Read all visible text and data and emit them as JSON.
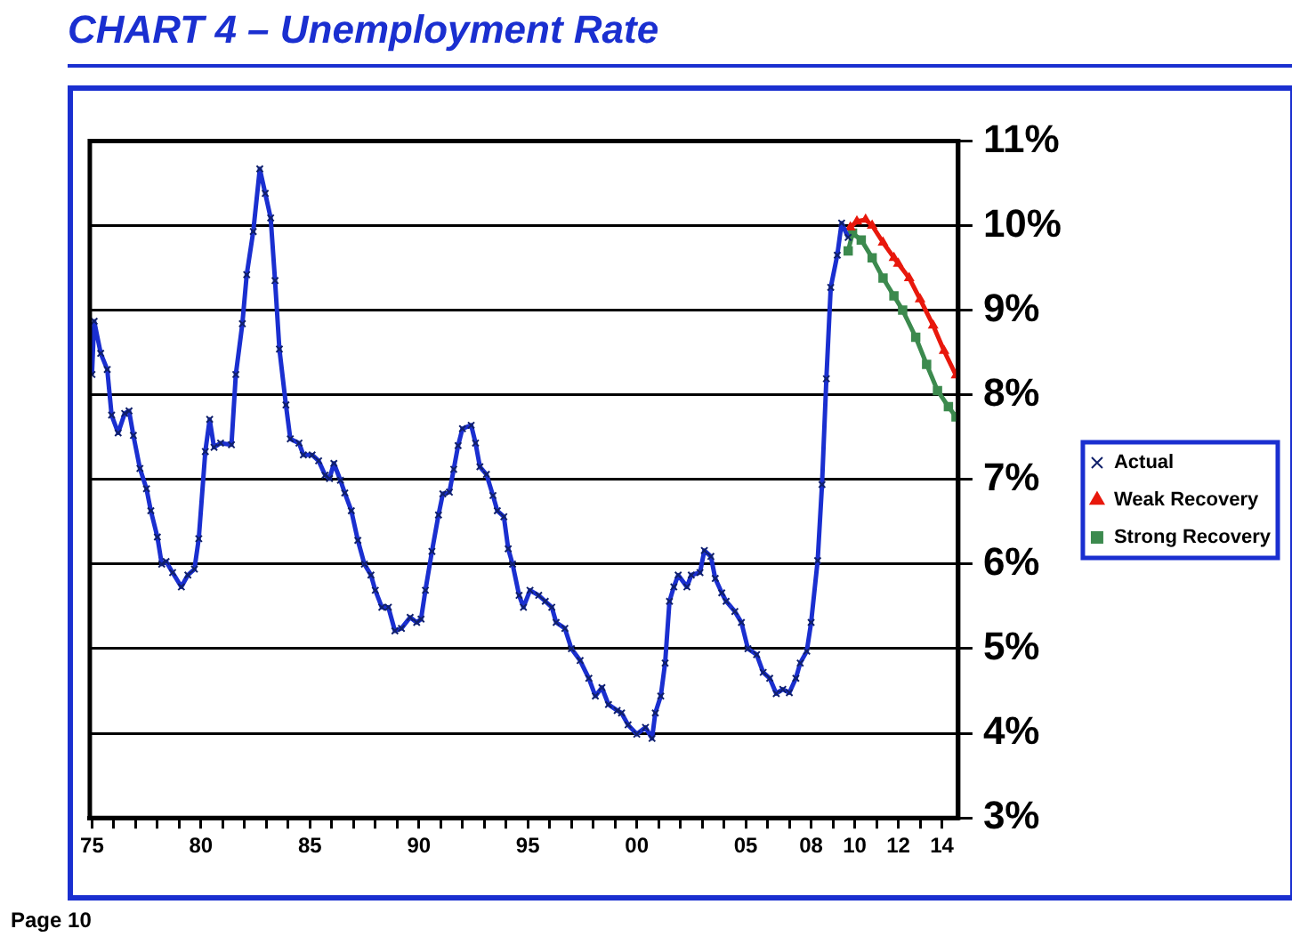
{
  "chart_data": {
    "type": "line",
    "title": "CHART 4 – Unemployment Rate",
    "annotations": [
      "Page 10"
    ],
    "xlim": [
      1974.9,
      2014.75
    ],
    "xticks": [
      {
        "value": 1975,
        "label": "75"
      },
      {
        "value": 1976,
        "label": null
      },
      {
        "value": 1977,
        "label": null
      },
      {
        "value": 1978,
        "label": null
      },
      {
        "value": 1979,
        "label": null
      },
      {
        "value": 1980,
        "label": "80"
      },
      {
        "value": 1981,
        "label": null
      },
      {
        "value": 1982,
        "label": null
      },
      {
        "value": 1983,
        "label": null
      },
      {
        "value": 1984,
        "label": null
      },
      {
        "value": 1985,
        "label": "85"
      },
      {
        "value": 1986,
        "label": null
      },
      {
        "value": 1987,
        "label": null
      },
      {
        "value": 1988,
        "label": null
      },
      {
        "value": 1989,
        "label": null
      },
      {
        "value": 1990,
        "label": "90"
      },
      {
        "value": 1991,
        "label": null
      },
      {
        "value": 1992,
        "label": null
      },
      {
        "value": 1993,
        "label": null
      },
      {
        "value": 1994,
        "label": null
      },
      {
        "value": 1995,
        "label": "95"
      },
      {
        "value": 1996,
        "label": null
      },
      {
        "value": 1997,
        "label": null
      },
      {
        "value": 1998,
        "label": null
      },
      {
        "value": 1999,
        "label": null
      },
      {
        "value": 2000,
        "label": "00"
      },
      {
        "value": 2001,
        "label": null
      },
      {
        "value": 2002,
        "label": null
      },
      {
        "value": 2003,
        "label": null
      },
      {
        "value": 2004,
        "label": null
      },
      {
        "value": 2005,
        "label": "05"
      },
      {
        "value": 2006,
        "label": null
      },
      {
        "value": 2007,
        "label": null
      },
      {
        "value": 2008,
        "label": "08"
      },
      {
        "value": 2009,
        "label": null
      },
      {
        "value": 2010,
        "label": "10"
      },
      {
        "value": 2011,
        "label": null
      },
      {
        "value": 2012,
        "label": "12"
      },
      {
        "value": 2013,
        "label": null
      },
      {
        "value": 2014,
        "label": "14"
      }
    ],
    "ylim": [
      3,
      11
    ],
    "yticks": [
      {
        "value": 3,
        "label": "3%"
      },
      {
        "value": 4,
        "label": "4%"
      },
      {
        "value": 5,
        "label": "5%"
      },
      {
        "value": 6,
        "label": "6%"
      },
      {
        "value": 7,
        "label": "7%"
      },
      {
        "value": 8,
        "label": "8%"
      },
      {
        "value": 9,
        "label": "9%"
      },
      {
        "value": 10,
        "label": "10%"
      },
      {
        "value": 11,
        "label": "11%"
      }
    ],
    "grid": "y",
    "legend": "right",
    "series": [
      {
        "name": "Actual",
        "color": "#1a2fd0",
        "marker": "cross",
        "line_style": "solid",
        "x": [
          1975.0,
          1975.1,
          1975.4,
          1975.7,
          1975.9,
          1976.2,
          1976.5,
          1976.7,
          1976.9,
          1977.2,
          1977.5,
          1977.7,
          1978.0,
          1978.2,
          1978.4,
          1978.7,
          1979.1,
          1979.4,
          1979.7,
          1979.9,
          1980.2,
          1980.4,
          1980.6,
          1980.9,
          1981.4,
          1981.6,
          1981.9,
          1982.1,
          1982.4,
          1982.7,
          1982.95,
          1983.2,
          1983.4,
          1983.6,
          1983.9,
          1984.1,
          1984.5,
          1984.7,
          1985.1,
          1985.4,
          1985.7,
          1985.9,
          1986.1,
          1986.4,
          1986.6,
          1986.9,
          1987.2,
          1987.5,
          1987.8,
          1988.0,
          1988.3,
          1988.6,
          1988.9,
          1989.2,
          1989.6,
          1989.9,
          1990.1,
          1990.3,
          1990.6,
          1990.9,
          1991.1,
          1991.4,
          1991.6,
          1991.8,
          1992.0,
          1992.4,
          1992.6,
          1992.8,
          1993.1,
          1993.4,
          1993.6,
          1993.9,
          1994.1,
          1994.3,
          1994.6,
          1994.8,
          1995.1,
          1995.5,
          1995.8,
          1996.1,
          1996.3,
          1996.7,
          1997.0,
          1997.4,
          1997.8,
          1998.1,
          1998.4,
          1998.7,
          1999.1,
          1999.3,
          1999.6,
          2000.0,
          2000.4,
          2000.7,
          2000.85,
          2001.1,
          2001.3,
          2001.5,
          2001.7,
          2001.9,
          2002.3,
          2002.5,
          2002.9,
          2003.1,
          2003.4,
          2003.6,
          2003.9,
          2004.1,
          2004.5,
          2004.8,
          2005.1,
          2005.5,
          2005.8,
          2006.1,
          2006.4,
          2006.7,
          2007.0,
          2007.3,
          2007.5,
          2007.8,
          2008.0,
          2008.3,
          2008.5,
          2008.7,
          2008.9,
          2009.2,
          2009.4,
          2009.7
        ],
        "values": [
          8.24,
          8.87,
          8.49,
          8.3,
          7.76,
          7.55,
          7.78,
          7.81,
          7.52,
          7.13,
          6.89,
          6.63,
          6.32,
          6.0,
          6.03,
          5.9,
          5.73,
          5.87,
          5.94,
          6.3,
          7.33,
          7.71,
          7.38,
          7.43,
          7.41,
          8.24,
          8.84,
          9.42,
          9.93,
          10.67,
          10.38,
          10.09,
          9.35,
          8.54,
          7.88,
          7.48,
          7.43,
          7.29,
          7.29,
          7.22,
          7.05,
          7.01,
          7.19,
          6.99,
          6.84,
          6.63,
          6.28,
          6.0,
          5.87,
          5.69,
          5.49,
          5.49,
          5.21,
          5.24,
          5.37,
          5.31,
          5.35,
          5.69,
          6.15,
          6.58,
          6.83,
          6.85,
          7.12,
          7.4,
          7.6,
          7.64,
          7.43,
          7.15,
          7.06,
          6.81,
          6.63,
          6.56,
          6.18,
          6.0,
          5.63,
          5.49,
          5.69,
          5.63,
          5.56,
          5.49,
          5.31,
          5.24,
          5.0,
          4.86,
          4.65,
          4.44,
          4.54,
          4.34,
          4.27,
          4.24,
          4.1,
          3.99,
          4.07,
          3.94,
          4.24,
          4.44,
          4.83,
          5.56,
          5.73,
          5.87,
          5.73,
          5.87,
          5.9,
          6.16,
          6.09,
          5.83,
          5.66,
          5.56,
          5.44,
          5.31,
          5.0,
          4.93,
          4.72,
          4.65,
          4.47,
          4.52,
          4.48,
          4.65,
          4.83,
          4.97,
          5.31,
          6.04,
          6.94,
          8.19,
          9.27,
          9.65,
          10.03,
          9.86
        ]
      },
      {
        "name": "Weak Recovery",
        "color": "#e8180c",
        "marker": "triangle",
        "line_style": "solid",
        "x": [
          2009.8,
          2010.1,
          2010.5,
          2010.8,
          2011.3,
          2011.8,
          2012.0,
          2012.5,
          2013.0,
          2013.6,
          2014.1,
          2014.65
        ],
        "values": [
          9.98,
          10.05,
          10.07,
          10.0,
          9.8,
          9.62,
          9.55,
          9.38,
          9.13,
          8.82,
          8.52,
          8.23
        ]
      },
      {
        "name": "Strong Recovery",
        "color": "#3c8a4e",
        "marker": "square",
        "line_style": "solid",
        "x": [
          2009.7,
          2009.9,
          2010.3,
          2010.8,
          2011.3,
          2011.8,
          2012.2,
          2012.8,
          2013.3,
          2013.8,
          2014.3,
          2014.65
        ],
        "values": [
          9.7,
          9.91,
          9.83,
          9.62,
          9.38,
          9.17,
          9.0,
          8.68,
          8.36,
          8.05,
          7.86,
          7.74
        ]
      }
    ]
  }
}
